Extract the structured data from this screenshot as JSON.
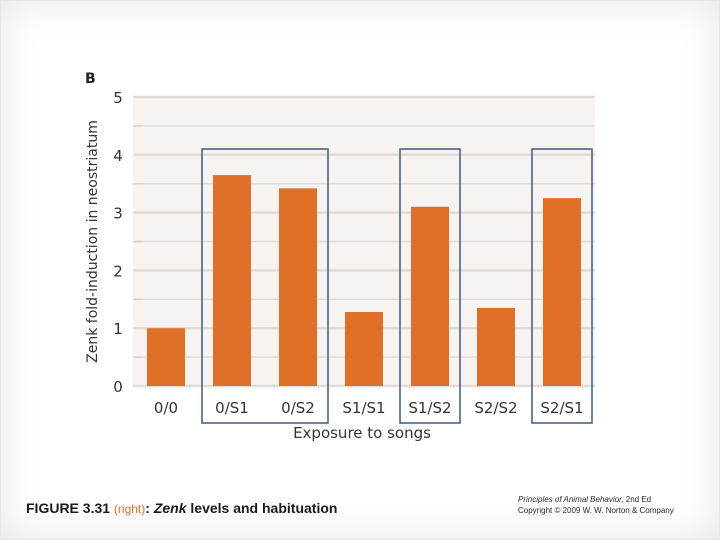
{
  "chart_data": {
    "type": "bar",
    "panel_label": "B",
    "categories": [
      "0/0",
      "0/S1",
      "0/S2",
      "S1/S1",
      "S1/S2",
      "S2/S2",
      "S2/S1"
    ],
    "values": [
      1.0,
      3.65,
      3.42,
      1.28,
      3.1,
      1.35,
      3.25
    ],
    "ylabel": "Zenk fold-induction in neostriatum",
    "xlabel": "Exposure to songs",
    "ylim": [
      0,
      5
    ],
    "yticks": [
      0,
      1,
      2,
      3,
      4,
      5
    ],
    "grid": true,
    "highlight_groups": [
      [
        "0/S1",
        "0/S2"
      ],
      [
        "S1/S2"
      ],
      [
        "S2/S1"
      ]
    ],
    "colors": {
      "bar": "#e07028",
      "grid": "#e3dcd6",
      "box": "#3d5a80",
      "text": "#333333"
    }
  },
  "caption": {
    "figure": "FIGURE 3.31",
    "position": "(right)",
    "colon": ":",
    "gene": "Zenk",
    "rest": "levels and habituation"
  },
  "credit": {
    "book": "Principles of Animal Behavior,",
    "edition": "2nd Ed",
    "copyright": "Copyright © 2009 W. W. Norton & Company"
  }
}
